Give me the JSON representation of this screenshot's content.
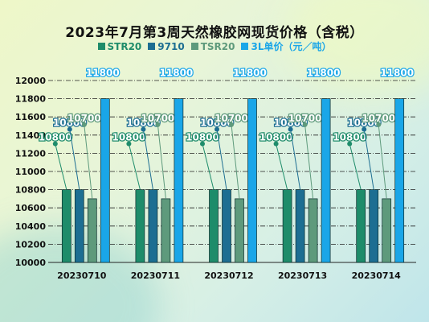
{
  "chart_data": {
    "type": "bar",
    "title": "2023年7月第3周天然橡胶网现货价格（含税）",
    "categories": [
      "20230710",
      "20230711",
      "20230712",
      "20230713",
      "20230714"
    ],
    "series": [
      {
        "name": "STR20",
        "color": "#1e8c6a",
        "values": [
          10800,
          10800,
          10800,
          10800,
          10800
        ]
      },
      {
        "name": "9710",
        "color": "#1d6e92",
        "values": [
          10800,
          10800,
          10800,
          10800,
          10800
        ]
      },
      {
        "name": "TSR20",
        "color": "#5e9a7c",
        "values": [
          10700,
          10700,
          10700,
          10700,
          10700
        ]
      },
      {
        "name": "3L单价（元／吨）",
        "color": "#1aa6e8",
        "values": [
          11800,
          11800,
          11800,
          11800,
          11800
        ]
      }
    ],
    "ylim": [
      10000,
      12000
    ],
    "yticks": [
      10000,
      10200,
      10400,
      10600,
      10800,
      11000,
      11200,
      11400,
      11600,
      11800,
      12000
    ],
    "grid": true,
    "legend_position": "top"
  }
}
